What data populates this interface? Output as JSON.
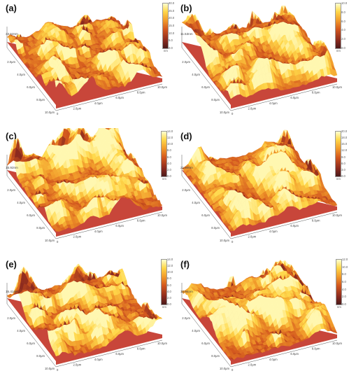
{
  "panels": [
    {
      "label": "(a)",
      "z_label": "33.52nm",
      "colorbar": {
        "ticks": [
          "30.0",
          "25.0",
          "20.0",
          "15.0",
          "10.0",
          "5.0",
          "0.0"
        ],
        "unit": "nm"
      }
    },
    {
      "label": "(b)",
      "z_label": "11.53nm",
      "colorbar": {
        "ticks": [
          "10.0",
          "8.0",
          "6.0",
          "4.0",
          "2.0",
          "0.0"
        ],
        "unit": "nm"
      }
    },
    {
      "label": "(c)",
      "z_label": "15.92nm",
      "colorbar": {
        "ticks": [
          "14.0",
          "12.0",
          "10.0",
          "8.0",
          "6.0",
          "4.0",
          "2.0",
          "0.0"
        ],
        "unit": "nm"
      }
    },
    {
      "label": "(d)",
      "z_label": "21.99nm",
      "colorbar": {
        "ticks": [
          "20.0",
          "18.0",
          "15.0",
          "12.0",
          "9.0",
          "6.0",
          "3.0",
          "0.0"
        ],
        "unit": "nm"
      }
    },
    {
      "label": "(e)",
      "z_label": "15.41nm",
      "colorbar": {
        "ticks": [
          "14.0",
          "12.0",
          "10.0",
          "8.0",
          "6.0",
          "4.0",
          "2.0",
          "0.0"
        ],
        "unit": "nm"
      }
    },
    {
      "label": "(f)",
      "z_label": "12.94nm",
      "colorbar": {
        "ticks": [
          "12.0",
          "10.0",
          "8.0",
          "6.0",
          "4.0",
          "2.0",
          "0.0"
        ],
        "unit": "nm"
      }
    }
  ],
  "axis_ticks": {
    "left": [
      "2.0μm",
      "4.0μm",
      "6.0μm",
      "8.0μm",
      "10.0μm"
    ],
    "right": [
      "2.0μm",
      "4.0μm",
      "6.0μm",
      "8.0μm",
      "10.0μm"
    ],
    "origin": "0"
  },
  "colors": {
    "dark": "#8b2a1e",
    "mid": "#e5752a",
    "light": "#ffd84a",
    "highlight": "#fff7b0"
  }
}
